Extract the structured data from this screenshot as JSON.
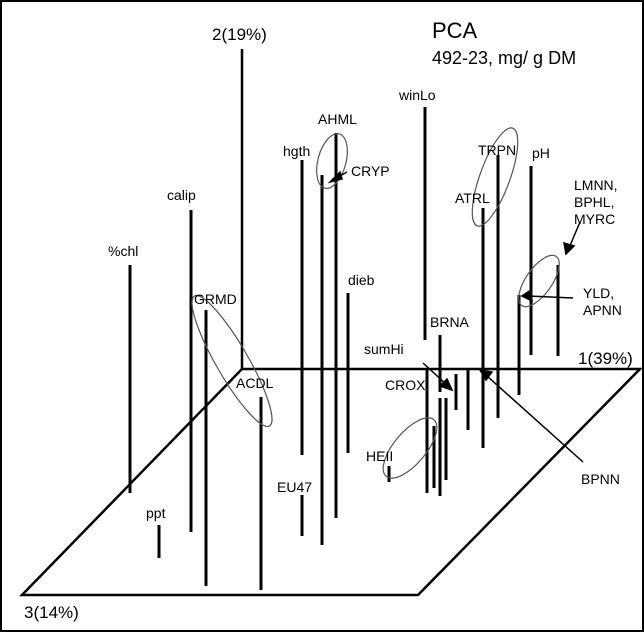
{
  "chart_data": {
    "type": "scatter",
    "title": "PCA",
    "subtitle": "492-23, mg/ g DM",
    "axes": {
      "x": "1(39%)",
      "y": "2(19%)",
      "z": "3(14%)"
    },
    "grid": false,
    "labels": [
      "%chl",
      "calip",
      "GRMD",
      "ACDL",
      "ppt",
      "EU47",
      "hgth",
      "AHML",
      "CRYP",
      "dieb",
      "winLo",
      "sumHi",
      "CROX",
      "HEII",
      "BRNA",
      "TRPN",
      "ATRL",
      "pH",
      "LMNN,",
      "BPHL,",
      "MYRC",
      "YLD,",
      "APNN",
      "BPNN"
    ]
  },
  "colors": {
    "ink": "#000000",
    "background": "#ffffff",
    "ellipse": "#555555"
  }
}
